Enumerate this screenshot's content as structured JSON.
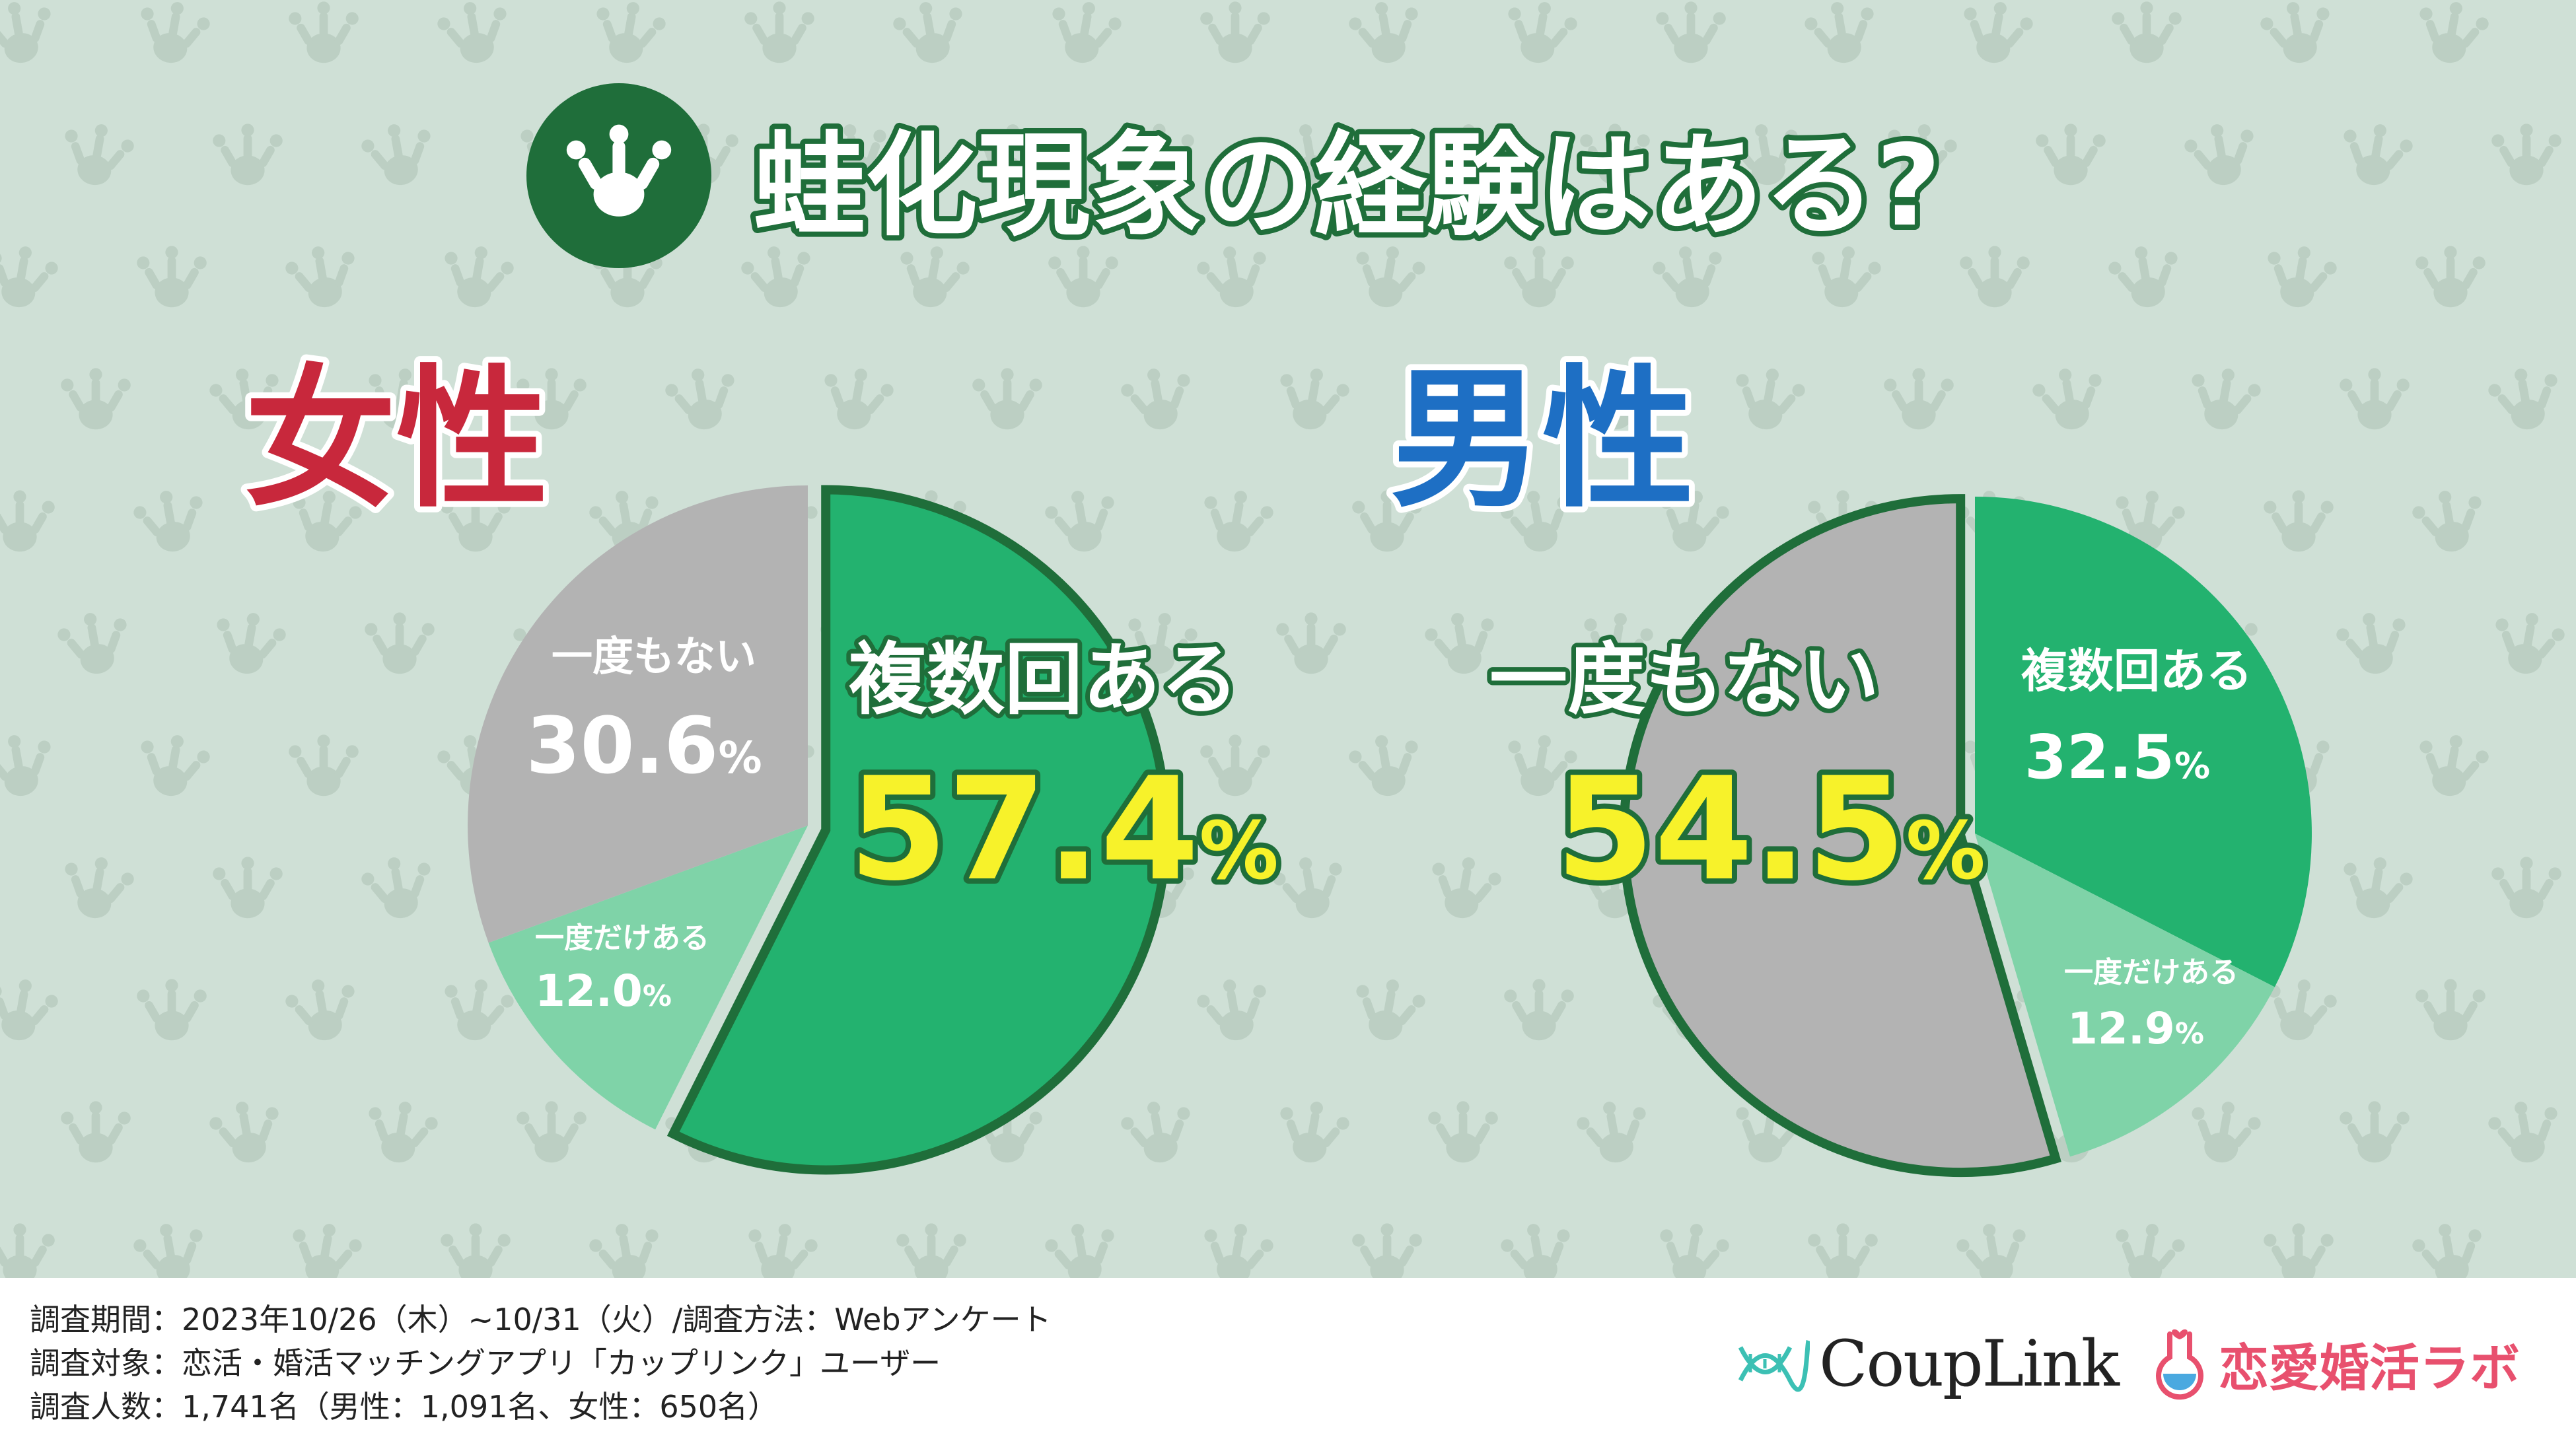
{
  "title": "蛙化現象の経験はある?",
  "icon": "frog-foot-icon",
  "colors": {
    "background": "#cfe0d6",
    "dark_green": "#1f6e3a",
    "green": "#23b26f",
    "light_green": "#7fd3a8",
    "gray": "#b3b3b3",
    "female_red": "#c8283c",
    "male_blue": "#1e6fc4",
    "highlight_yellow": "#f7f22a"
  },
  "chart_data": [
    {
      "type": "pie",
      "title": "女性",
      "categories": [
        "複数回ある",
        "一度だけある",
        "一度もない"
      ],
      "values": [
        57.4,
        12.0,
        30.6
      ],
      "value_labels": [
        "57.4",
        "12.0",
        "30.6"
      ],
      "unit": "%",
      "highlight": "複数回ある"
    },
    {
      "type": "pie",
      "title": "男性",
      "categories": [
        "複数回ある",
        "一度だけある",
        "一度もない"
      ],
      "values": [
        32.5,
        12.9,
        54.5
      ],
      "value_labels": [
        "32.5",
        "12.9",
        "54.5"
      ],
      "unit": "%",
      "highlight": "一度もない"
    }
  ],
  "footer": {
    "lines": [
      "調査期間：2023年10/26（木）~10/31（火）/調査方法：Webアンケート",
      "調査対象：恋活・婚活マッチングアプリ「カップリンク」ユーザー",
      "調査人数：1,741名（男性：1,091名、女性：650名）"
    ],
    "logo_couplink": "CoupLink",
    "logo_couplink_icon": "dna-icon",
    "logo_lab": "恋愛婚活ラボ",
    "logo_lab_icon": "flask-icon"
  }
}
